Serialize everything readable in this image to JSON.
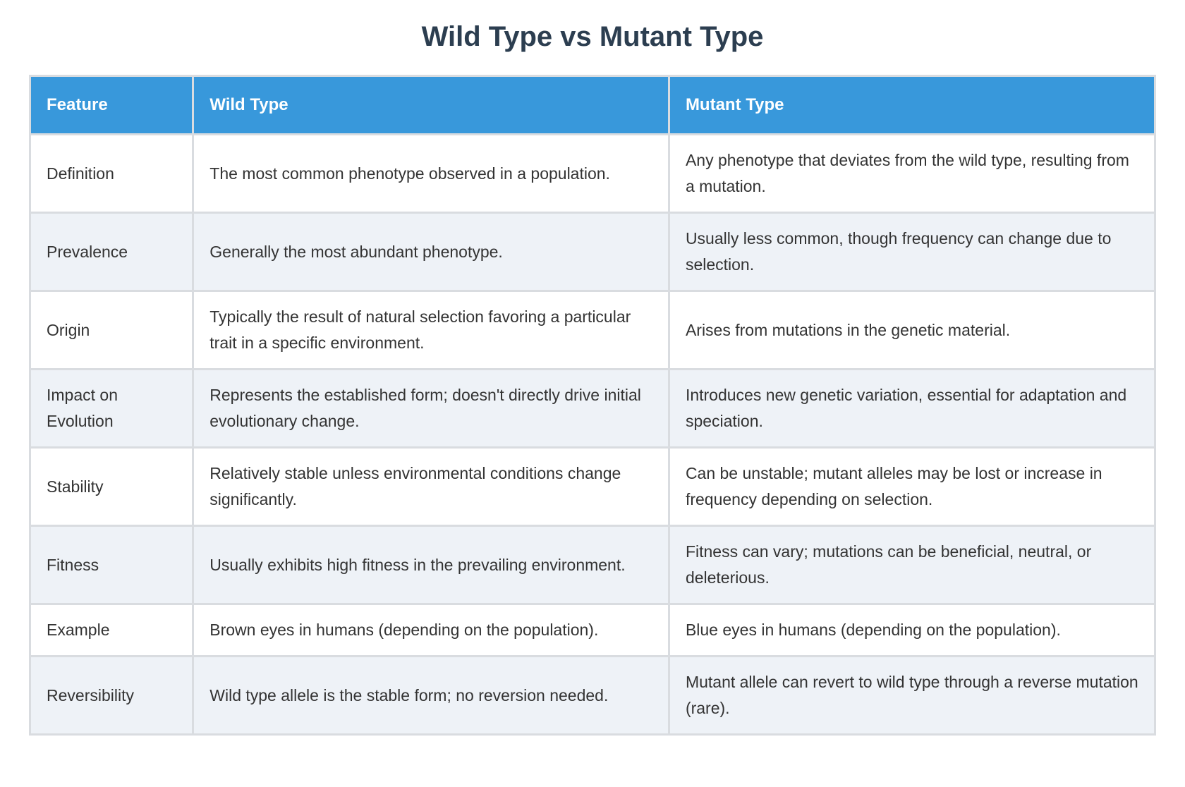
{
  "page": {
    "title": "Wild Type vs Mutant Type"
  },
  "colors": {
    "header_bg": "#3898db",
    "header_text": "#ffffff",
    "stripe_bg": "#eef2f7",
    "title_text": "#2c3e50",
    "body_text": "#333333",
    "border": "#d9dce0"
  },
  "table": {
    "columns": [
      "Feature",
      "Wild Type",
      "Mutant Type"
    ],
    "rows": [
      {
        "feature": "Definition",
        "wild": "The most common phenotype observed in a population.",
        "mutant": "Any phenotype that deviates from the wild type, resulting from a mutation."
      },
      {
        "feature": "Prevalence",
        "wild": "Generally the most abundant phenotype.",
        "mutant": "Usually less common, though frequency can change due to selection."
      },
      {
        "feature": "Origin",
        "wild": "Typically the result of natural selection favoring a particular trait in a specific environment.",
        "mutant": "Arises from mutations in the genetic material."
      },
      {
        "feature": "Impact on Evolution",
        "wild": "Represents the established form; doesn't directly drive initial evolutionary change.",
        "mutant": "Introduces new genetic variation, essential for adaptation and speciation."
      },
      {
        "feature": "Stability",
        "wild": "Relatively stable unless environmental conditions change significantly.",
        "mutant": "Can be unstable; mutant alleles may be lost or increase in frequency depending on selection."
      },
      {
        "feature": "Fitness",
        "wild": "Usually exhibits high fitness in the prevailing environment.",
        "mutant": "Fitness can vary; mutations can be beneficial, neutral, or deleterious."
      },
      {
        "feature": "Example",
        "wild": "Brown eyes in humans (depending on the population).",
        "mutant": "Blue eyes in humans (depending on the population)."
      },
      {
        "feature": "Reversibility",
        "wild": "Wild type allele is the stable form; no reversion needed.",
        "mutant": "Mutant allele can revert to wild type through a reverse mutation (rare)."
      }
    ]
  }
}
